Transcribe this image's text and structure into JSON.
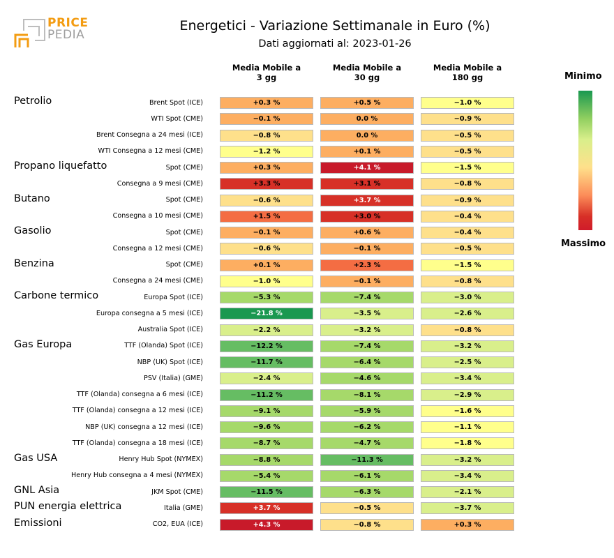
{
  "logo": {
    "line1": "PRICE",
    "line2": "PEDIA"
  },
  "chart_data": {
    "type": "table",
    "title": "Energetici - Variazione Settimanale in Euro (%)",
    "subtitle": "Dati aggiornati al: 2023-01-26",
    "columns": [
      "Media Mobile a\n3 gg",
      "Media Mobile a\n30 gg",
      "Media Mobile a\n180 gg"
    ],
    "legend": {
      "top": "Minimo",
      "bottom": "Massimo"
    },
    "groups": [
      {
        "name": "Petrolio",
        "rows": [
          {
            "label": "Brent Spot (ICE)",
            "values": [
              "+0.3 %",
              "+0.5 %",
              "−1.0 %"
            ],
            "num": [
              0.3,
              0.5,
              -1.0
            ]
          },
          {
            "label": "WTI Spot (CME)",
            "values": [
              "−0.1 %",
              "0.0 %",
              "−0.9 %"
            ],
            "num": [
              -0.1,
              0.0,
              -0.9
            ]
          },
          {
            "label": "Brent Consegna a 24 mesi (ICE)",
            "values": [
              "−0.8 %",
              "0.0 %",
              "−0.5 %"
            ],
            "num": [
              -0.8,
              0.0,
              -0.5
            ]
          },
          {
            "label": "WTI Consegna a 12 mesi (CME)",
            "values": [
              "−1.2 %",
              "+0.1 %",
              "−0.5 %"
            ],
            "num": [
              -1.2,
              0.1,
              -0.5
            ]
          }
        ]
      },
      {
        "name": "Propano liquefatto",
        "rows": [
          {
            "label": "Spot (CME)",
            "values": [
              "+0.3 %",
              "+4.1 %",
              "−1.5 %"
            ],
            "num": [
              0.3,
              4.1,
              -1.5
            ]
          },
          {
            "label": "Consegna a 9 mesi (CME)",
            "values": [
              "+3.3 %",
              "+3.1 %",
              "−0.8 %"
            ],
            "num": [
              3.3,
              3.1,
              -0.8
            ]
          }
        ]
      },
      {
        "name": "Butano",
        "rows": [
          {
            "label": "Spot (CME)",
            "values": [
              "−0.6 %",
              "+3.7 %",
              "−0.9 %"
            ],
            "num": [
              -0.6,
              3.7,
              -0.9
            ]
          },
          {
            "label": "Consegna a 10 mesi (CME)",
            "values": [
              "+1.5 %",
              "+3.0 %",
              "−0.4 %"
            ],
            "num": [
              1.5,
              3.0,
              -0.4
            ]
          }
        ]
      },
      {
        "name": "Gasolio",
        "rows": [
          {
            "label": "Spot (CME)",
            "values": [
              "−0.1 %",
              "+0.6 %",
              "−0.4 %"
            ],
            "num": [
              -0.1,
              0.6,
              -0.4
            ]
          },
          {
            "label": "Consegna a 12 mesi (CME)",
            "values": [
              "−0.6 %",
              "−0.1 %",
              "−0.5 %"
            ],
            "num": [
              -0.6,
              -0.1,
              -0.5
            ]
          }
        ]
      },
      {
        "name": "Benzina",
        "rows": [
          {
            "label": "Spot (CME)",
            "values": [
              "+0.1 %",
              "+2.3 %",
              "−1.5 %"
            ],
            "num": [
              0.1,
              2.3,
              -1.5
            ]
          },
          {
            "label": "Consegna a 24 mesi (CME)",
            "values": [
              "−1.0 %",
              "−0.1 %",
              "−0.8 %"
            ],
            "num": [
              -1.0,
              -0.1,
              -0.8
            ]
          }
        ]
      },
      {
        "name": "Carbone termico",
        "rows": [
          {
            "label": "Europa Spot (ICE)",
            "values": [
              "−5.3 %",
              "−7.4 %",
              "−3.0 %"
            ],
            "num": [
              -5.3,
              -7.4,
              -3.0
            ]
          },
          {
            "label": "Europa consegna a 5 mesi (ICE)",
            "values": [
              "−21.8 %",
              "−3.5 %",
              "−2.6 %"
            ],
            "num": [
              -21.8,
              -3.5,
              -2.6
            ]
          },
          {
            "label": "Australia Spot (ICE)",
            "values": [
              "−2.2 %",
              "−3.2 %",
              "−0.8 %"
            ],
            "num": [
              -2.2,
              -3.2,
              -0.8
            ]
          }
        ]
      },
      {
        "name": "Gas Europa",
        "rows": [
          {
            "label": "TTF (Olanda) Spot (ICE)",
            "values": [
              "−12.2 %",
              "−7.4 %",
              "−3.2 %"
            ],
            "num": [
              -12.2,
              -7.4,
              -3.2
            ]
          },
          {
            "label": "NBP (UK) Spot (ICE)",
            "values": [
              "−11.7 %",
              "−6.4 %",
              "−2.5 %"
            ],
            "num": [
              -11.7,
              -6.4,
              -2.5
            ]
          },
          {
            "label": "PSV (Italia) (GME)",
            "values": [
              "−2.4 %",
              "−4.6 %",
              "−3.4 %"
            ],
            "num": [
              -2.4,
              -4.6,
              -3.4
            ]
          },
          {
            "label": "TTF (Olanda) consegna a 6 mesi (ICE)",
            "values": [
              "−11.2 %",
              "−8.1 %",
              "−2.9 %"
            ],
            "num": [
              -11.2,
              -8.1,
              -2.9
            ]
          },
          {
            "label": "TTF (Olanda) consegna a 12 mesi (ICE)",
            "values": [
              "−9.1 %",
              "−5.9 %",
              "−1.6 %"
            ],
            "num": [
              -9.1,
              -5.9,
              -1.6
            ]
          },
          {
            "label": "NBP (UK) consegna a 12 mesi (ICE)",
            "values": [
              "−9.6 %",
              "−6.2 %",
              "−1.1 %"
            ],
            "num": [
              -9.6,
              -6.2,
              -1.1
            ]
          },
          {
            "label": "TTF (Olanda) consegna a 18 mesi (ICE)",
            "values": [
              "−8.7 %",
              "−4.7 %",
              "−1.8 %"
            ],
            "num": [
              -8.7,
              -4.7,
              -1.8
            ]
          }
        ]
      },
      {
        "name": "Gas USA",
        "rows": [
          {
            "label": "Henry Hub Spot (NYMEX)",
            "values": [
              "−8.8 %",
              "−11.3 %",
              "−3.2 %"
            ],
            "num": [
              -8.8,
              -11.3,
              -3.2
            ]
          },
          {
            "label": "Henry Hub consegna a 4 mesi (NYMEX)",
            "values": [
              "−5.4 %",
              "−6.1 %",
              "−3.4 %"
            ],
            "num": [
              -5.4,
              -6.1,
              -3.4
            ]
          }
        ]
      },
      {
        "name": "GNL Asia",
        "rows": [
          {
            "label": "JKM Spot (CME)",
            "values": [
              "−11.5 %",
              "−6.3 %",
              "−2.1 %"
            ],
            "num": [
              -11.5,
              -6.3,
              -2.1
            ]
          }
        ]
      },
      {
        "name": "PUN energia elettrica",
        "rows": [
          {
            "label": "Italia (GME)",
            "values": [
              "+3.7 %",
              "−0.5 %",
              "−3.7 %"
            ],
            "num": [
              3.7,
              -0.5,
              -3.7
            ]
          }
        ]
      },
      {
        "name": "Emissioni",
        "rows": [
          {
            "label": "CO2, EUA (ICE)",
            "values": [
              "+4.3 %",
              "−0.8 %",
              "+0.3 %"
            ],
            "num": [
              4.3,
              -0.8,
              0.3
            ]
          }
        ]
      }
    ],
    "colors": {
      "scale": [
        "#1a9850",
        "#66bd63",
        "#a6d96a",
        "#d9ef8b",
        "#ffff8c",
        "#fee08b",
        "#fdae61",
        "#f46d43",
        "#d73027",
        "#c81a2a"
      ]
    }
  }
}
